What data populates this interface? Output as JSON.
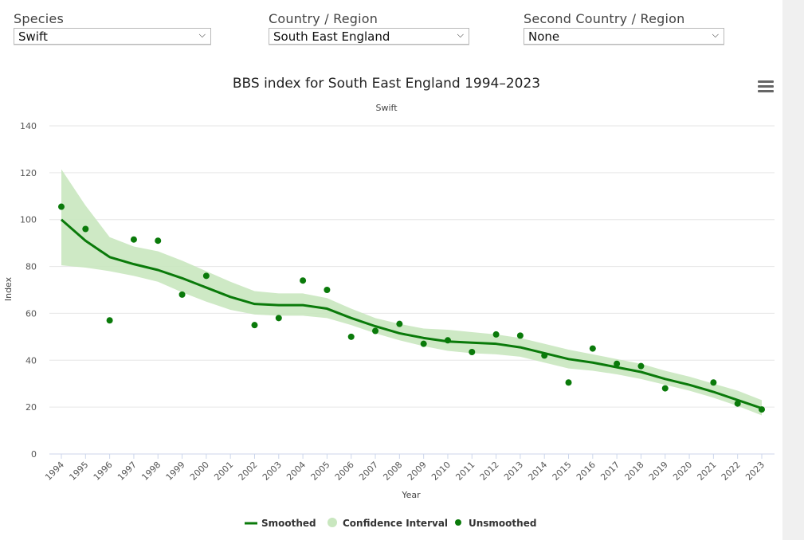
{
  "controls": {
    "species": {
      "label": "Species",
      "value": "Swift"
    },
    "region": {
      "label": "Country / Region",
      "value": "South East England"
    },
    "second_region": {
      "label": "Second Country / Region",
      "value": "None"
    }
  },
  "icons": {
    "menu": "hamburger-menu-icon",
    "dropdown": "chevron-down-icon"
  },
  "colors": {
    "smoothed": "#0a7a0a",
    "confidence": "#c9e7bf",
    "unsmoothed": "#0a7a0a",
    "grid": "#e6e6e6"
  },
  "chart_data": {
    "type": "line",
    "title": "BBS index for South East England 1994–2023",
    "subtitle": "Swift",
    "xlabel": "Year",
    "ylabel": "Index",
    "ylim": [
      0,
      140
    ],
    "yticks": [
      0,
      20,
      40,
      60,
      80,
      100,
      120,
      140
    ],
    "grid": true,
    "legend_position": "bottom-center",
    "x": [
      1994,
      1995,
      1996,
      1997,
      1998,
      1999,
      2000,
      2001,
      2002,
      2003,
      2004,
      2005,
      2006,
      2007,
      2008,
      2009,
      2010,
      2011,
      2012,
      2013,
      2014,
      2015,
      2016,
      2017,
      2018,
      2019,
      2020,
      2021,
      2022,
      2023
    ],
    "series": [
      {
        "name": "Smoothed",
        "values": [
          100,
          91,
          84,
          81,
          78.5,
          75,
          71,
          67,
          64,
          63.5,
          63.5,
          62,
          58,
          54.5,
          51.5,
          49.5,
          48,
          47.5,
          47,
          45.5,
          43,
          40.5,
          39,
          37,
          35,
          32,
          29.5,
          26.5,
          23,
          19.5
        ]
      },
      {
        "name": "Confidence Interval",
        "lower": [
          80.5,
          79.5,
          78,
          76,
          73.5,
          69,
          65,
          61.5,
          59.5,
          59,
          59,
          58,
          55,
          51.5,
          48.5,
          46,
          44,
          43,
          42.5,
          41.5,
          39,
          36.5,
          35.5,
          34,
          32,
          29.5,
          27,
          24,
          20.5,
          16.5
        ],
        "upper": [
          121.5,
          106,
          92.5,
          88.5,
          86.5,
          82.5,
          78,
          73.5,
          69.5,
          68.5,
          68.5,
          66.5,
          62,
          58,
          55.5,
          53.5,
          53,
          52,
          51,
          49.5,
          47,
          44.5,
          42.5,
          40.5,
          38.5,
          35.5,
          33,
          30,
          27,
          23
        ]
      },
      {
        "name": "Unsmoothed",
        "values": [
          105.5,
          96,
          57,
          91.5,
          91,
          68,
          76,
          null,
          55,
          58,
          74,
          70,
          50,
          52.5,
          55.5,
          47,
          48.5,
          43.5,
          51,
          50.5,
          42,
          30.5,
          45,
          38.5,
          37.5,
          28,
          null,
          30.5,
          21.5,
          19
        ]
      }
    ]
  }
}
